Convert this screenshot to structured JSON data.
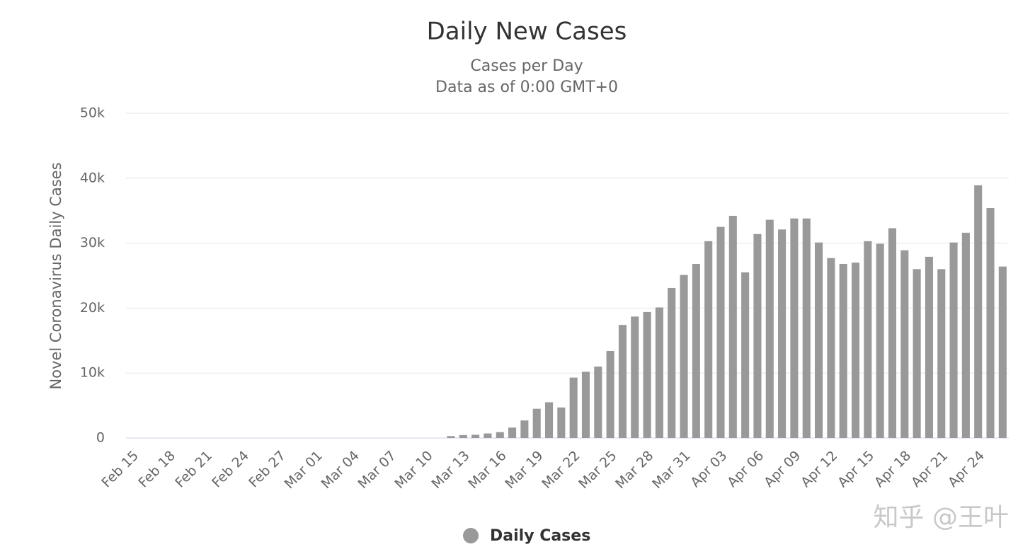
{
  "chart_data": {
    "type": "bar",
    "title": "Daily New Cases",
    "subtitle": [
      "Cases per Day",
      "Data as of 0:00 GMT+0"
    ],
    "y_axis_label": "Novel Coronavirus Daily Cases",
    "watermark": "知乎 @王叶",
    "categories": [
      "Feb 15",
      null,
      null,
      "Feb 18",
      null,
      null,
      "Feb 21",
      null,
      null,
      "Feb 24",
      null,
      null,
      "Feb 27",
      null,
      null,
      "Mar 01",
      null,
      null,
      "Mar 04",
      null,
      null,
      "Mar 07",
      null,
      null,
      "Mar 10",
      null,
      null,
      "Mar 13",
      null,
      null,
      "Mar 16",
      null,
      null,
      "Mar 19",
      null,
      null,
      "Mar 22",
      null,
      null,
      "Mar 25",
      null,
      null,
      "Mar 28",
      null,
      null,
      "Mar 31",
      null,
      null,
      "Apr 03",
      null,
      null,
      "Apr 06",
      null,
      null,
      "Apr 09",
      null,
      null,
      "Apr 12",
      null,
      null,
      "Apr 15",
      null,
      null,
      "Apr 18",
      null,
      null,
      "Apr 21",
      null,
      null,
      "Apr 24",
      null,
      null
    ],
    "series": [
      {
        "name": "Daily Cases",
        "color": "#999999",
        "values": [
          0,
          0,
          0,
          0,
          0,
          0,
          0,
          0,
          0,
          0,
          0,
          0,
          0,
          0,
          0,
          0,
          0,
          0,
          0,
          0,
          0,
          0,
          0,
          0,
          0,
          0,
          300,
          450,
          500,
          700,
          900,
          1600,
          2700,
          4500,
          5500,
          4700,
          9300,
          10200,
          11000,
          13400,
          17400,
          18700,
          19400,
          20100,
          23100,
          25100,
          26800,
          30300,
          32500,
          34200,
          25500,
          31400,
          33600,
          32100,
          33800,
          33800,
          30100,
          27700,
          26800,
          27000,
          30300,
          29900,
          32300,
          28900,
          26000,
          27900,
          26000,
          30100,
          31600,
          38900,
          35400,
          26400
        ]
      }
    ],
    "ylim": [
      0,
      50000
    ],
    "yticks": [
      0,
      {
        "value": 10000,
        "label": "10k"
      },
      {
        "value": 20000,
        "label": "20k"
      },
      {
        "value": 30000,
        "label": "30k"
      },
      {
        "value": 40000,
        "label": "40k"
      },
      {
        "value": 50000,
        "label": "50k"
      }
    ],
    "grid": true,
    "legend": "bottom"
  }
}
